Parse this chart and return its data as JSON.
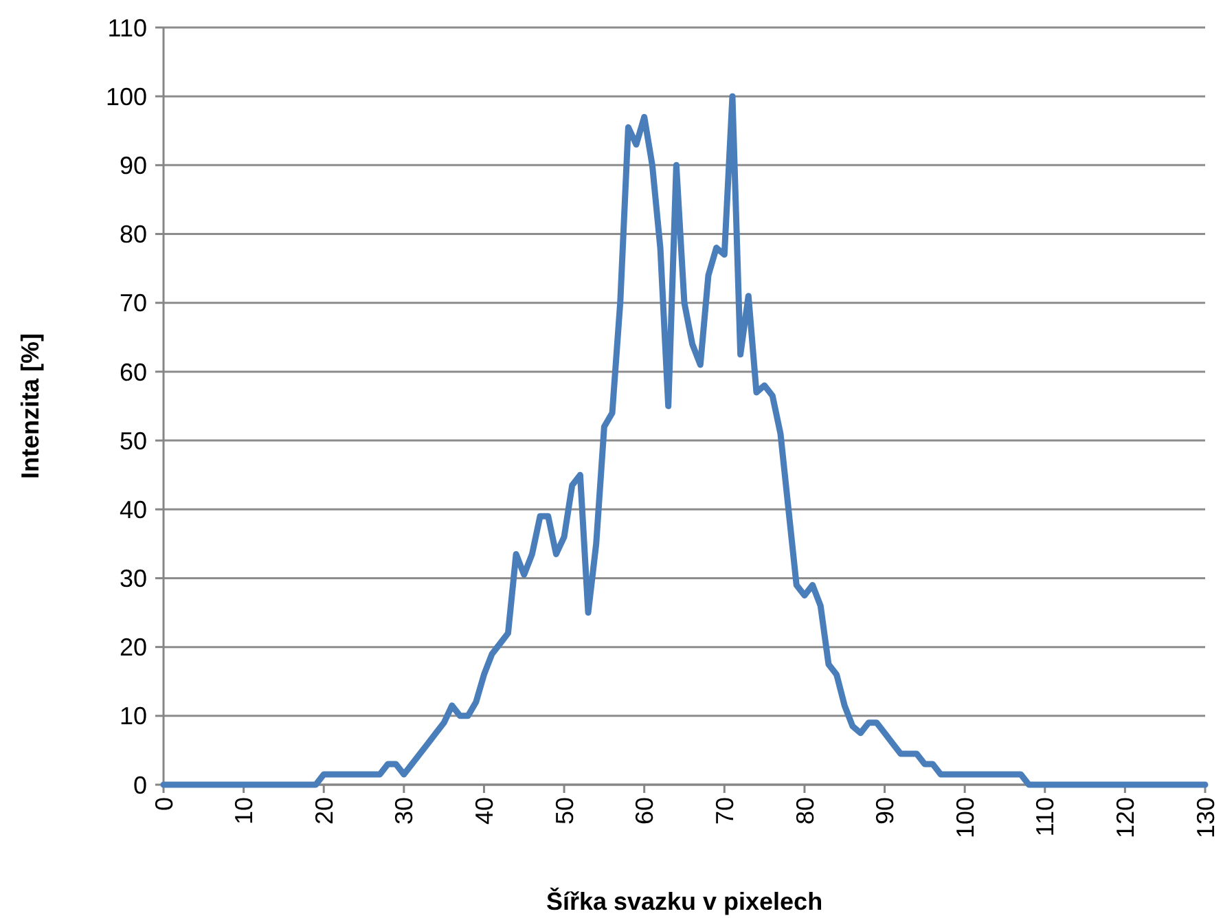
{
  "chart_data": {
    "type": "line",
    "xlabel": "Šířka svazku v pixelech",
    "ylabel": "Intenzita [%]",
    "x": [
      0,
      1,
      2,
      3,
      4,
      5,
      6,
      7,
      8,
      9,
      10,
      11,
      12,
      13,
      14,
      15,
      16,
      17,
      18,
      19,
      20,
      21,
      22,
      23,
      24,
      25,
      26,
      27,
      28,
      29,
      30,
      31,
      32,
      33,
      34,
      35,
      36,
      37,
      38,
      39,
      40,
      41,
      42,
      43,
      44,
      45,
      46,
      47,
      48,
      49,
      50,
      51,
      52,
      53,
      54,
      55,
      56,
      57,
      58,
      59,
      60,
      61,
      62,
      63,
      64,
      65,
      66,
      67,
      68,
      69,
      70,
      71,
      72,
      73,
      74,
      75,
      76,
      77,
      78,
      79,
      80,
      81,
      82,
      83,
      84,
      85,
      86,
      87,
      88,
      89,
      90,
      91,
      92,
      93,
      94,
      95,
      96,
      97,
      98,
      99,
      100,
      101,
      102,
      103,
      104,
      105,
      106,
      107,
      108,
      109,
      110,
      111,
      112,
      113,
      114,
      115,
      116,
      117,
      118,
      119,
      120,
      121,
      122,
      123,
      124,
      125,
      126,
      127,
      128,
      129,
      130
    ],
    "series": [
      {
        "color": "#4a7ebb",
        "values": [
          0,
          0,
          0,
          0,
          0,
          0,
          0,
          0,
          0,
          0,
          0,
          0,
          0,
          0,
          0,
          0,
          0,
          0,
          0,
          0,
          1.5,
          1.5,
          1.5,
          1.5,
          1.5,
          1.5,
          1.5,
          1.5,
          3,
          3,
          1.5,
          3,
          4.5,
          6,
          7.5,
          9,
          11.5,
          10,
          10,
          12,
          16,
          19,
          20.5,
          22,
          33.5,
          30.5,
          33.5,
          39,
          39,
          33.5,
          36,
          43.5,
          45,
          25,
          35,
          52,
          54,
          70,
          95.5,
          93,
          97,
          90,
          78,
          55,
          90,
          70,
          64,
          61,
          74,
          78,
          77,
          100,
          62.5,
          71,
          57,
          58,
          56.5,
          51,
          40,
          29,
          27.5,
          29,
          26,
          17.5,
          16,
          11.5,
          8.5,
          7.5,
          9,
          9,
          7.5,
          6,
          4.5,
          4.5,
          4.5,
          3,
          3,
          1.5,
          1.5,
          1.5,
          1.5,
          1.5,
          1.5,
          1.5,
          1.5,
          1.5,
          1.5,
          1.5,
          0,
          0,
          0,
          0,
          0,
          0,
          0,
          0,
          0,
          0,
          0,
          0,
          0,
          0,
          0,
          0,
          0,
          0,
          0,
          0,
          0,
          0,
          0
        ]
      }
    ],
    "xlim": [
      0,
      130
    ],
    "xticks": [
      0,
      10,
      20,
      30,
      40,
      50,
      60,
      70,
      80,
      90,
      100,
      110,
      120,
      130
    ],
    "ylim": [
      0,
      110
    ],
    "yticks": [
      0,
      10,
      20,
      30,
      40,
      50,
      60,
      70,
      80,
      90,
      100,
      110
    ],
    "grid": "y",
    "marker": "none",
    "line_style": "solid"
  }
}
